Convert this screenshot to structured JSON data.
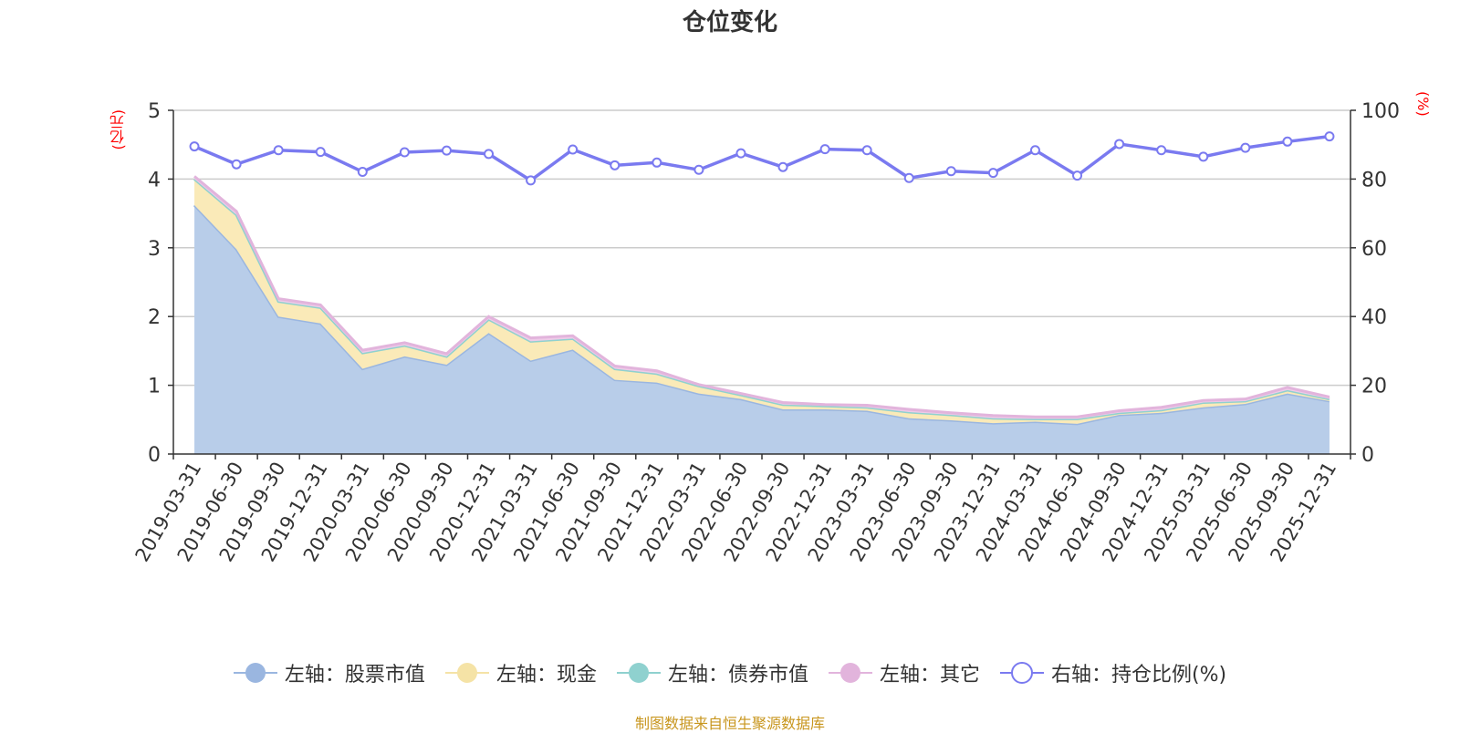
{
  "page": {
    "unit_left": "(亿元)",
    "unit_right": "(%)",
    "source_note": "制图数据来自恒生聚源数据库"
  },
  "chart_data": {
    "type": "area",
    "title": "仓位变化",
    "categories": [
      "2019-03-31",
      "2019-06-30",
      "2019-09-30",
      "2019-12-31",
      "2020-03-31",
      "2020-06-30",
      "2020-09-30",
      "2020-12-31",
      "2021-03-31",
      "2021-06-30",
      "2021-09-30",
      "2021-12-31",
      "2022-03-31",
      "2022-06-30",
      "2022-09-30",
      "2022-12-31",
      "2023-03-31",
      "2023-06-30",
      "2023-09-30",
      "2023-12-31",
      "2024-03-31",
      "2024-06-30",
      "2024-09-30",
      "2024-12-31",
      "2025-03-31",
      "2025-06-30",
      "2025-09-30",
      "2025-12-31"
    ],
    "left_axis": {
      "min": 0,
      "max": 5,
      "ticks": [
        "0",
        "1",
        "2",
        "3",
        "4",
        "5"
      ]
    },
    "right_axis": {
      "min": 0,
      "max": 100,
      "ticks": [
        "0",
        "20",
        "40",
        "60",
        "80",
        "100"
      ]
    },
    "series": [
      {
        "name": "左轴：股票市值",
        "axis": "left",
        "kind": "stacked-area",
        "color": "#9ab6e0",
        "fill": "#b8cde9",
        "values": [
          3.62,
          2.98,
          2.0,
          1.9,
          1.24,
          1.42,
          1.3,
          1.76,
          1.36,
          1.52,
          1.08,
          1.04,
          0.88,
          0.8,
          0.65,
          0.65,
          0.63,
          0.52,
          0.49,
          0.45,
          0.47,
          0.44,
          0.57,
          0.6,
          0.68,
          0.73,
          0.88,
          0.77
        ]
      },
      {
        "name": "左轴：现金",
        "axis": "left",
        "kind": "stacked-area",
        "color": "#f5e3a6",
        "fill": "#faeab8",
        "values": [
          0.38,
          0.5,
          0.22,
          0.23,
          0.23,
          0.16,
          0.12,
          0.2,
          0.28,
          0.16,
          0.16,
          0.13,
          0.11,
          0.06,
          0.07,
          0.05,
          0.05,
          0.09,
          0.08,
          0.07,
          0.04,
          0.07,
          0.03,
          0.04,
          0.07,
          0.04,
          0.05,
          0.03
        ]
      },
      {
        "name": "左轴：债券市值",
        "axis": "left",
        "kind": "stacked-area",
        "color": "#8fd1cf",
        "fill": "#aadddb",
        "values": [
          0,
          0,
          0,
          0,
          0,
          0,
          0,
          0,
          0,
          0,
          0,
          0,
          0,
          0,
          0,
          0,
          0,
          0,
          0,
          0,
          0,
          0,
          0,
          0,
          0,
          0,
          0,
          0
        ]
      },
      {
        "name": "左轴：其它",
        "axis": "left",
        "kind": "stacked-area",
        "color": "#e2b4dc",
        "fill": "#eecbe8",
        "values": [
          0.04,
          0.05,
          0.04,
          0.04,
          0.04,
          0.04,
          0.04,
          0.04,
          0.05,
          0.04,
          0.04,
          0.04,
          0.02,
          0.02,
          0.03,
          0.02,
          0.03,
          0.04,
          0.03,
          0.04,
          0.03,
          0.03,
          0.03,
          0.04,
          0.03,
          0.03,
          0.04,
          0.03
        ]
      },
      {
        "name": "右轴：持仓比例(%)",
        "axis": "right",
        "kind": "line",
        "color": "#7a7af0",
        "values": [
          89.5,
          84.3,
          88.4,
          87.9,
          82.1,
          87.8,
          88.3,
          87.3,
          79.6,
          88.6,
          84.0,
          84.8,
          82.7,
          87.5,
          83.5,
          88.7,
          88.4,
          80.3,
          82.3,
          81.8,
          88.4,
          81.0,
          90.2,
          88.4,
          86.5,
          89.1,
          90.9,
          92.4
        ]
      }
    ],
    "legend": [
      {
        "label": "左轴：股票市值",
        "color": "#9ab6e0",
        "marker": "filled"
      },
      {
        "label": "左轴：现金",
        "color": "#f5e3a6",
        "marker": "filled"
      },
      {
        "label": "左轴：债券市值",
        "color": "#8fd1cf",
        "marker": "filled"
      },
      {
        "label": "左轴：其它",
        "color": "#e2b4dc",
        "marker": "filled"
      },
      {
        "label": "右轴：持仓比例(%)",
        "color": "#7a7af0",
        "marker": "hollow"
      }
    ]
  }
}
